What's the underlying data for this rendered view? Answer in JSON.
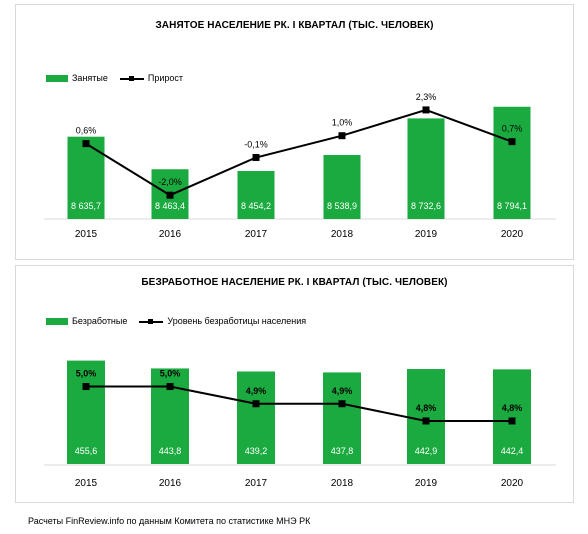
{
  "chart_data": [
    {
      "type": "bar",
      "title": "ЗАНЯТОЕ НАСЕЛЕНИЕ РК. I КВАРТАЛ (ТЫС. ЧЕЛОВЕК)",
      "categories": [
        "2015",
        "2016",
        "2017",
        "2018",
        "2019",
        "2020"
      ],
      "series": [
        {
          "name": "Занятые",
          "type": "bar",
          "values": [
            8635.7,
            8463.4,
            8454.2,
            8538.9,
            8732.6,
            8794.1
          ],
          "labels": [
            "8 635,7",
            "8 463,4",
            "8 454,2",
            "8 538,9",
            "8 732,6",
            "8 794,1"
          ],
          "color": "#1aaa3f"
        },
        {
          "name": "Прирост",
          "type": "line",
          "values": [
            0.6,
            -2.0,
            -0.1,
            1.0,
            2.3,
            0.7
          ],
          "labels": [
            "0,6%",
            "-2,0%",
            "-0,1%",
            "1,0%",
            "2,3%",
            "0,7%"
          ],
          "color": "#000000"
        }
      ],
      "bar_range": [
        8200,
        8830
      ],
      "line_range": [
        -3.2,
        2.8
      ],
      "legend_position": "top-left",
      "grid": false
    },
    {
      "type": "bar",
      "title": "БЕЗРАБОТНОЕ НАСЕЛЕНИЕ РК. I КВАРТАЛ (ТЫС. ЧЕЛОВЕК)",
      "categories": [
        "2015",
        "2016",
        "2017",
        "2018",
        "2019",
        "2020"
      ],
      "series": [
        {
          "name": "Безработные",
          "type": "bar",
          "values": [
            455.6,
            443.8,
            439.2,
            437.8,
            442.9,
            442.4
          ],
          "labels": [
            "455,6",
            "443,8",
            "439,2",
            "437,8",
            "442,9",
            "442,4"
          ],
          "color": "#1aaa3f"
        },
        {
          "name": "Уровень безработицы населения",
          "type": "line",
          "values": [
            5.0,
            5.0,
            4.9,
            4.9,
            4.8,
            4.8
          ],
          "labels": [
            "5,0%",
            "5,0%",
            "4,9%",
            "4,9%",
            "4,8%",
            "4,8%"
          ],
          "color": "#000000"
        }
      ],
      "bar_range": [
        300,
        458
      ],
      "line_range": [
        4.55,
        5.16
      ],
      "legend_position": "top-left",
      "grid": false
    }
  ],
  "footer": "Расчеты FinReview.info по данным Комитета по статистике МНЭ РК"
}
